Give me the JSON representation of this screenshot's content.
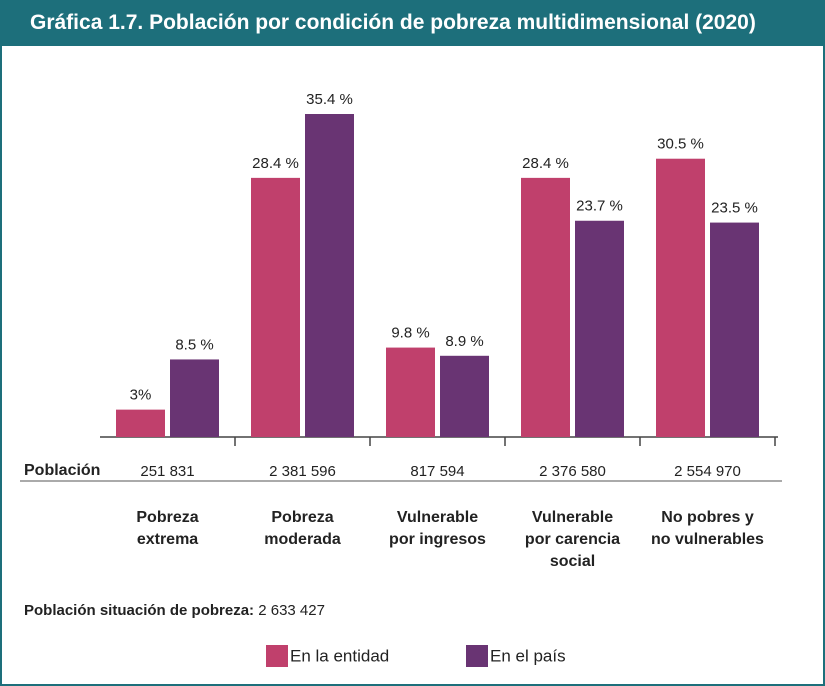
{
  "chart_data": {
    "type": "bar",
    "title": "Gráfica 1.7. Población por condición de pobreza multidimensional (2020)",
    "categories": [
      "Pobreza\nextrema",
      "Pobreza\nmoderada",
      "Vulnerable\npor ingresos",
      "Vulnerable\npor carencia\nsocial",
      "No pobres y\nno vulnerables"
    ],
    "series": [
      {
        "name": "En la entidad",
        "color": "#c0406c",
        "values": [
          3,
          28.4,
          9.8,
          28.4,
          30.5
        ],
        "value_labels": [
          "3%",
          "28.4 %",
          "9.8 %",
          "28.4 %",
          "30.5 %"
        ]
      },
      {
        "name": "En el país",
        "color": "#693473",
        "values": [
          8.5,
          35.4,
          8.9,
          23.7,
          23.5
        ],
        "value_labels": [
          "8.5 %",
          "35.4 %",
          "8.9 %",
          "23.7 %",
          "23.5 %"
        ]
      }
    ],
    "population": {
      "label": "Población",
      "values": [
        "251 831",
        "2 381 596",
        "817 594",
        "2 376 580",
        "2 554 970"
      ]
    },
    "footnote": {
      "label": "Población situación de pobreza:",
      "value": "2 633 427"
    }
  }
}
